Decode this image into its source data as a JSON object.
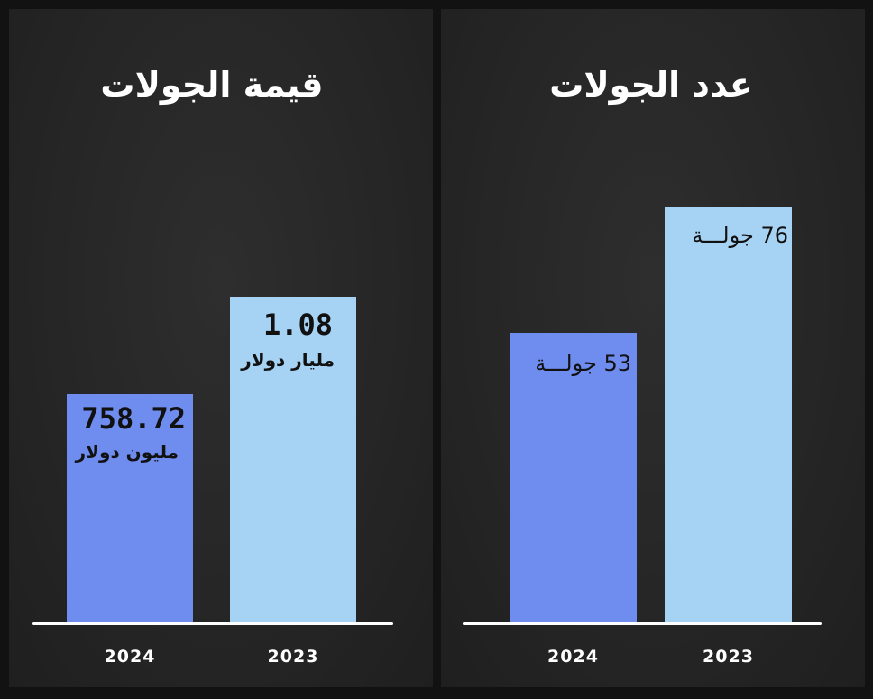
{
  "chart_data": [
    {
      "type": "bar",
      "title": "قيمة الجولات",
      "categories": [
        "2024",
        "2023"
      ],
      "values": [
        758.72,
        1080
      ],
      "ylim": [
        0,
        1650
      ],
      "colors": [
        "#6f8cef",
        "#a6d2f3"
      ],
      "data_labels": [
        {
          "value": "758.72",
          "unit": "مليون دولار"
        },
        {
          "value": "1.08",
          "unit": "مليار دولار"
        }
      ]
    },
    {
      "type": "bar",
      "title": "عدد الجولات",
      "categories": [
        "2024",
        "2023"
      ],
      "values": [
        53,
        76
      ],
      "ylim": [
        0,
        91
      ],
      "colors": [
        "#6f8cef",
        "#a6d2f3"
      ],
      "data_labels": [
        {
          "value": "53",
          "unit": "جولـــة"
        },
        {
          "value": "76",
          "unit": "جولـــة"
        }
      ]
    }
  ]
}
